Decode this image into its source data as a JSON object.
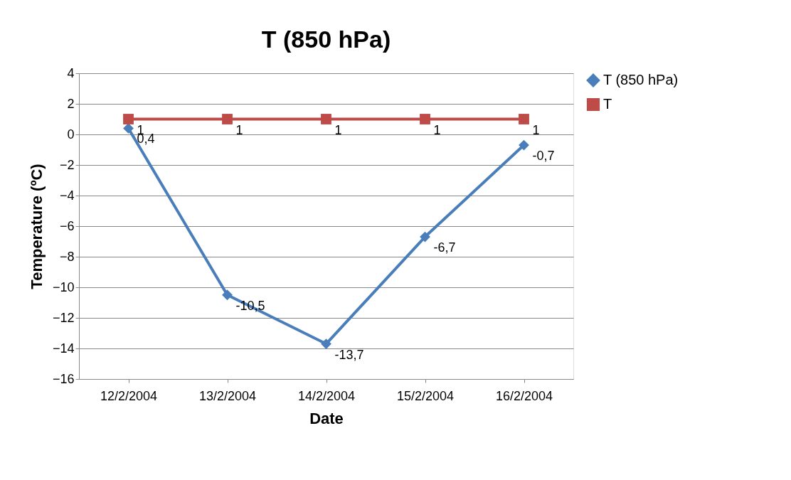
{
  "chart_data": {
    "type": "line",
    "title": "T (850 hPa)",
    "xlabel": "Date",
    "ylabel": "Temperature (ºC)",
    "categories": [
      "12/2/2004",
      "13/2/2004",
      "14/2/2004",
      "15/2/2004",
      "16/2/2004"
    ],
    "series": [
      {
        "name": "T (850 hPa)",
        "color": "#4a7ebb",
        "marker": "diamond",
        "values": [
          0.4,
          -10.5,
          -13.7,
          -6.7,
          -0.7
        ],
        "value_labels": [
          "0,4",
          "-10,5",
          "-13,7",
          "-6,7",
          "-0,7"
        ]
      },
      {
        "name": "T",
        "color": "#be4b48",
        "marker": "square",
        "values": [
          1,
          1,
          1,
          1,
          1
        ],
        "value_labels": [
          "1",
          "1",
          "1",
          "1",
          "1"
        ]
      }
    ],
    "ylim": [
      -16,
      4
    ],
    "yticks": [
      -16,
      -14,
      -12,
      -10,
      -8,
      -6,
      -4,
      -2,
      0,
      2,
      4
    ],
    "grid": "y",
    "legend": "right",
    "line_style": "solid"
  }
}
